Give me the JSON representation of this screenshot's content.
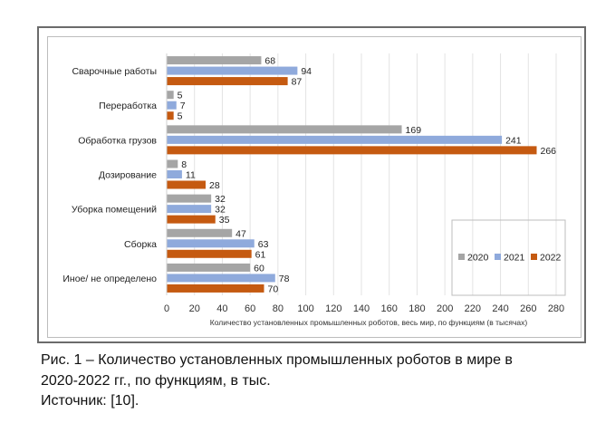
{
  "chart_data": {
    "type": "bar",
    "orientation": "horizontal",
    "categories": [
      "Сварочные работы",
      "Переработка",
      "Обработка грузов",
      "Дозирование",
      "Уборка помещений",
      "Сборка",
      "Иное/ не определено"
    ],
    "series": [
      {
        "name": "2020",
        "color": "#a5a5a5",
        "values": [
          68,
          5,
          169,
          8,
          32,
          47,
          60
        ]
      },
      {
        "name": "2021",
        "color": "#8faadc",
        "values": [
          94,
          7,
          241,
          11,
          32,
          63,
          78
        ]
      },
      {
        "name": "2022",
        "color": "#c55a11",
        "values": [
          87,
          5,
          266,
          28,
          35,
          61,
          70
        ]
      }
    ],
    "xlabel": "Количество установленных промышленных роботов, весь мир, по функциям (в тысячах)",
    "xlim": [
      0,
      280
    ],
    "xticks": [
      0,
      20,
      40,
      60,
      80,
      100,
      120,
      140,
      160,
      180,
      200,
      220,
      240,
      260,
      280
    ],
    "grid": true,
    "legend": "bottom-right"
  },
  "caption": {
    "line1": "Рис. 1 – Количество установленных промышленных роботов в мире в",
    "line2": "2020-2022 гг., по функциям, в тыс.",
    "source": "Источник: [10]."
  }
}
